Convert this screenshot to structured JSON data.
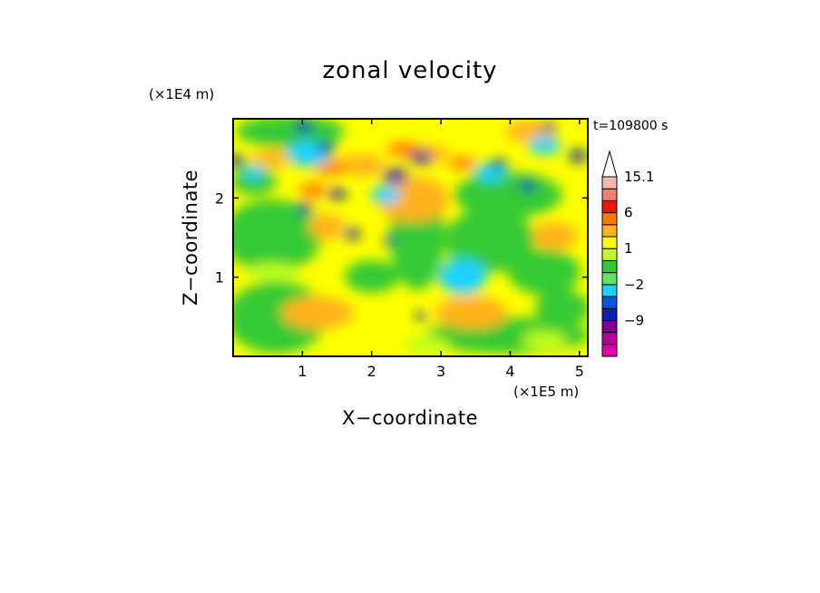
{
  "chart_data": {
    "type": "heatmap",
    "title": "zonal velocity",
    "xlabel": "X−coordinate",
    "ylabel": "Z−coordinate",
    "x_unit": "(×1E5 m)",
    "y_unit": "(×1E4 m)",
    "time_label": "t=109800 s",
    "xlim": [
      0,
      5.12
    ],
    "ylim": [
      0,
      3.0
    ],
    "x_ticks": [
      {
        "value": 1,
        "label": "1"
      },
      {
        "value": 2,
        "label": "2"
      },
      {
        "value": 3,
        "label": "3"
      },
      {
        "value": 4,
        "label": "4"
      },
      {
        "value": 5,
        "label": "5"
      }
    ],
    "y_ticks": [
      {
        "value": 1,
        "label": "1"
      },
      {
        "value": 2,
        "label": "2"
      }
    ],
    "colorbar": {
      "levels": [
        -15,
        -12,
        -9,
        -6,
        -4,
        -2,
        -1,
        0,
        1,
        2,
        3,
        6,
        9,
        12,
        15.1
      ],
      "colors": [
        "#e600a6",
        "#b3009e",
        "#7a0096",
        "#0b23a8",
        "#0a54d6",
        "#1ad2ff",
        "#5ee65e",
        "#35c935",
        "#bfff1f",
        "#ffff00",
        "#ffb21f",
        "#ff7a00",
        "#e61a00",
        "#f08070",
        "#f5b8b0"
      ],
      "labels": [
        {
          "value": -9,
          "text": "−9"
        },
        {
          "value": -2,
          "text": "−2"
        },
        {
          "value": 1,
          "text": "1"
        },
        {
          "value": 6,
          "text": "6"
        },
        {
          "value": 15.1,
          "text": "15.1"
        }
      ],
      "extend": "max"
    },
    "grid": false
  }
}
